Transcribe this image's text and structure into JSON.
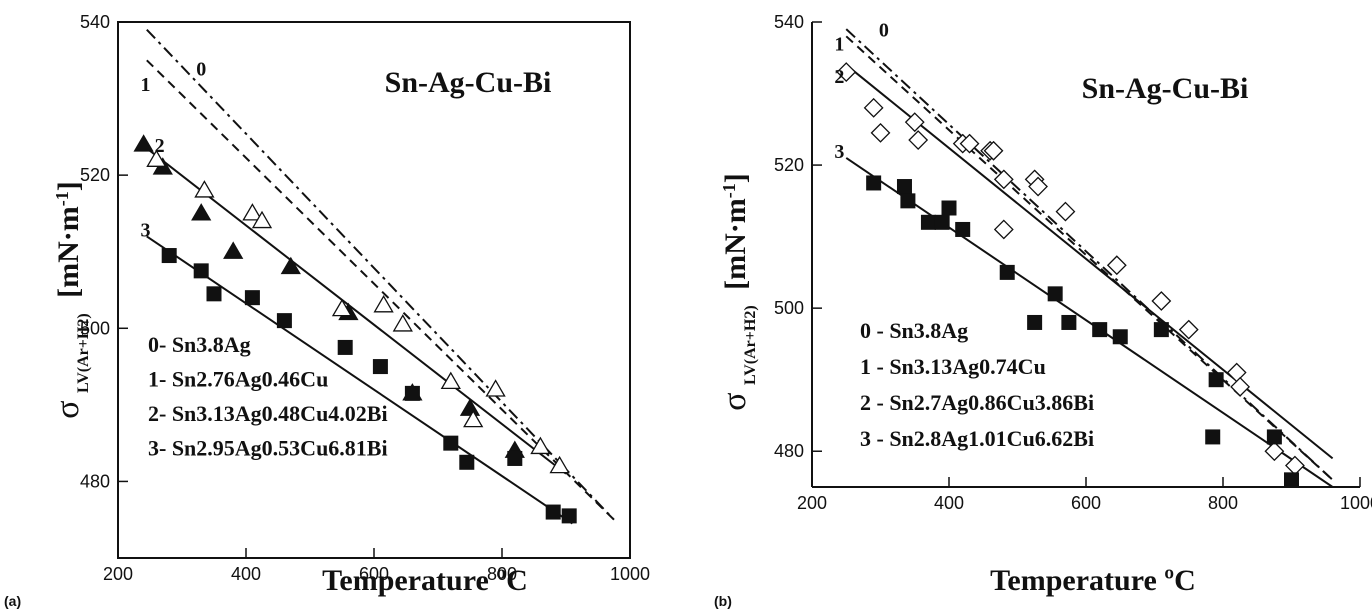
{
  "chart_data": [
    {
      "panel": "(a)",
      "type": "scatter",
      "title": "Sn-Ag-Cu-Bi",
      "xlabel": "Temperature ºC",
      "ylabel_main": "σ",
      "ylabel_sub": "LV(Ar+H2)",
      "ylabel_unit": "[mN·m-1]",
      "xlim": [
        200,
        1000
      ],
      "ylim": [
        470,
        540
      ],
      "xticks": [
        200,
        400,
        600,
        800,
        1000
      ],
      "yticks": [
        480,
        500,
        520,
        540
      ],
      "legend": [
        "0- Sn3.8Ag",
        "1- Sn2.76Ag0.46Cu",
        "2- Sn3.13Ag0.48Cu4.02Bi",
        "3- Sn2.95Ag0.53Cu6.81Bi"
      ],
      "lines": [
        {
          "label": "0",
          "style": "dashdot",
          "x": [
            245,
            975
          ],
          "y": [
            539,
            475
          ]
        },
        {
          "label": "1",
          "style": "dash",
          "x": [
            245,
            975
          ],
          "y": [
            535,
            475
          ]
        },
        {
          "label": "2",
          "style": "solid",
          "x": [
            245,
            900
          ],
          "y": [
            523.5,
            481
          ]
        },
        {
          "label": "3",
          "style": "solid",
          "x": [
            245,
            910
          ],
          "y": [
            512,
            474.5
          ]
        }
      ],
      "line_labels": [
        {
          "text": "0",
          "x": 330,
          "y": 533
        },
        {
          "text": "1",
          "x": 243,
          "y": 531
        },
        {
          "text": "2",
          "x": 265,
          "y": 523
        },
        {
          "text": "3",
          "x": 243,
          "y": 512
        }
      ],
      "series": [
        {
          "marker": "triangle-filled",
          "x": [
            240,
            270,
            330,
            380,
            470,
            560,
            660,
            750,
            820
          ],
          "y": [
            524,
            521,
            515,
            510,
            508,
            502,
            491.5,
            489.5,
            484
          ]
        },
        {
          "marker": "triangle-open",
          "x": [
            260,
            335,
            410,
            425,
            550,
            615,
            645,
            720,
            755,
            790,
            860,
            890
          ],
          "y": [
            522,
            518,
            515,
            514,
            502.5,
            503,
            500.5,
            493,
            488,
            492,
            484.5,
            482
          ]
        },
        {
          "marker": "square-filled",
          "x": [
            280,
            330,
            350,
            410,
            460,
            555,
            610,
            660,
            720,
            745,
            820,
            880,
            905
          ],
          "y": [
            509.5,
            507.5,
            504.5,
            504,
            501,
            497.5,
            495,
            491.5,
            485,
            482.5,
            483,
            476,
            475.5
          ]
        }
      ]
    },
    {
      "panel": "(b)",
      "type": "scatter",
      "title": "Sn-Ag-Cu-Bi",
      "xlabel": "Temperature ºC",
      "ylabel_main": "σ",
      "ylabel_sub": "LV(Ar+H2)",
      "ylabel_unit": "[mN·m-1]",
      "xlim": [
        200,
        1000
      ],
      "ylim": [
        475,
        540
      ],
      "xticks": [
        200,
        400,
        600,
        800,
        1000
      ],
      "yticks": [
        480,
        500,
        520,
        540
      ],
      "legend": [
        "0  - Sn3.8Ag",
        "1  - Sn3.13Ag0.74Cu",
        "2  - Sn2.7Ag0.86Cu3.86Bi",
        "3  - Sn2.8Ag1.01Cu6.62Bi"
      ],
      "lines": [
        {
          "label": "0",
          "style": "dashdot",
          "x": [
            250,
            960
          ],
          "y": [
            539,
            476
          ]
        },
        {
          "label": "1",
          "style": "dash",
          "x": [
            250,
            960
          ],
          "y": [
            538,
            476
          ]
        },
        {
          "label": "2",
          "style": "solid",
          "x": [
            250,
            960
          ],
          "y": [
            534,
            479
          ]
        },
        {
          "label": "3",
          "style": "solid",
          "x": [
            250,
            960
          ],
          "y": [
            521,
            475
          ]
        }
      ],
      "line_labels": [
        {
          "text": "0",
          "x": 305,
          "y": 538
        },
        {
          "text": "1",
          "x": 240,
          "y": 536
        },
        {
          "text": "2",
          "x": 240,
          "y": 531.5
        },
        {
          "text": "3",
          "x": 240,
          "y": 521
        }
      ],
      "series": [
        {
          "marker": "diamond-open",
          "x": [
            250,
            290,
            300,
            350,
            355,
            420,
            430,
            460,
            465,
            480,
            480,
            525,
            530,
            570,
            645,
            710,
            750,
            820,
            825,
            875,
            905
          ],
          "y": [
            533,
            528,
            524.5,
            526,
            523.5,
            523,
            523,
            522,
            522,
            518,
            511,
            518,
            517,
            513.5,
            506,
            501,
            497,
            491,
            489,
            480,
            478
          ]
        },
        {
          "marker": "square-filled",
          "x": [
            290,
            335,
            340,
            370,
            390,
            400,
            420,
            485,
            525,
            555,
            575,
            620,
            650,
            710,
            785,
            790,
            875,
            900
          ],
          "y": [
            517.5,
            517,
            515,
            512,
            512,
            514,
            511,
            505,
            498,
            502,
            498,
            497,
            496,
            497,
            482,
            490,
            482,
            476
          ]
        }
      ]
    }
  ],
  "panel_labels": [
    "(a)",
    "(b)"
  ]
}
